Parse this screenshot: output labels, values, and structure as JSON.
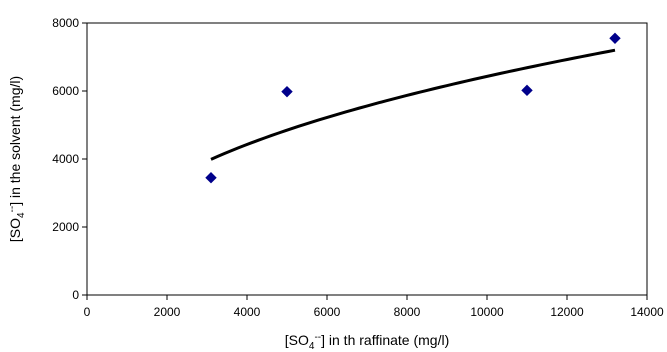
{
  "chart_data": {
    "type": "scatter",
    "xlabel": "[SO4--] in th raffinate (mg/l)",
    "ylabel": "[SO4--] in the solvent (mg/l)",
    "xlabel_parts": {
      "pre": "[SO",
      "sub": "4",
      "sup": "--",
      "post": "] in th raffinate (mg/l)"
    },
    "ylabel_parts": {
      "pre": "[SO",
      "sub": "4",
      "sup": "--",
      "post": "] in the solvent (mg/l)"
    },
    "xlim": [
      0,
      14000
    ],
    "ylim": [
      0,
      8000
    ],
    "x_ticks": [
      0,
      2000,
      4000,
      6000,
      8000,
      10000,
      12000,
      14000
    ],
    "y_ticks": [
      0,
      2000,
      4000,
      6000,
      8000
    ],
    "grid": false,
    "legend": "none",
    "series": [
      {
        "marker": "diamond",
        "color": "#00008B",
        "points": [
          {
            "x": 3100,
            "y": 3450
          },
          {
            "x": 5000,
            "y": 5980
          },
          {
            "x": 11000,
            "y": 6020
          },
          {
            "x": 13200,
            "y": 7550
          }
        ]
      }
    ],
    "trendline": {
      "type": "power",
      "color": "#000000",
      "x_range": [
        3100,
        13200
      ],
      "y_start": 3990,
      "y_end": 7200
    }
  }
}
